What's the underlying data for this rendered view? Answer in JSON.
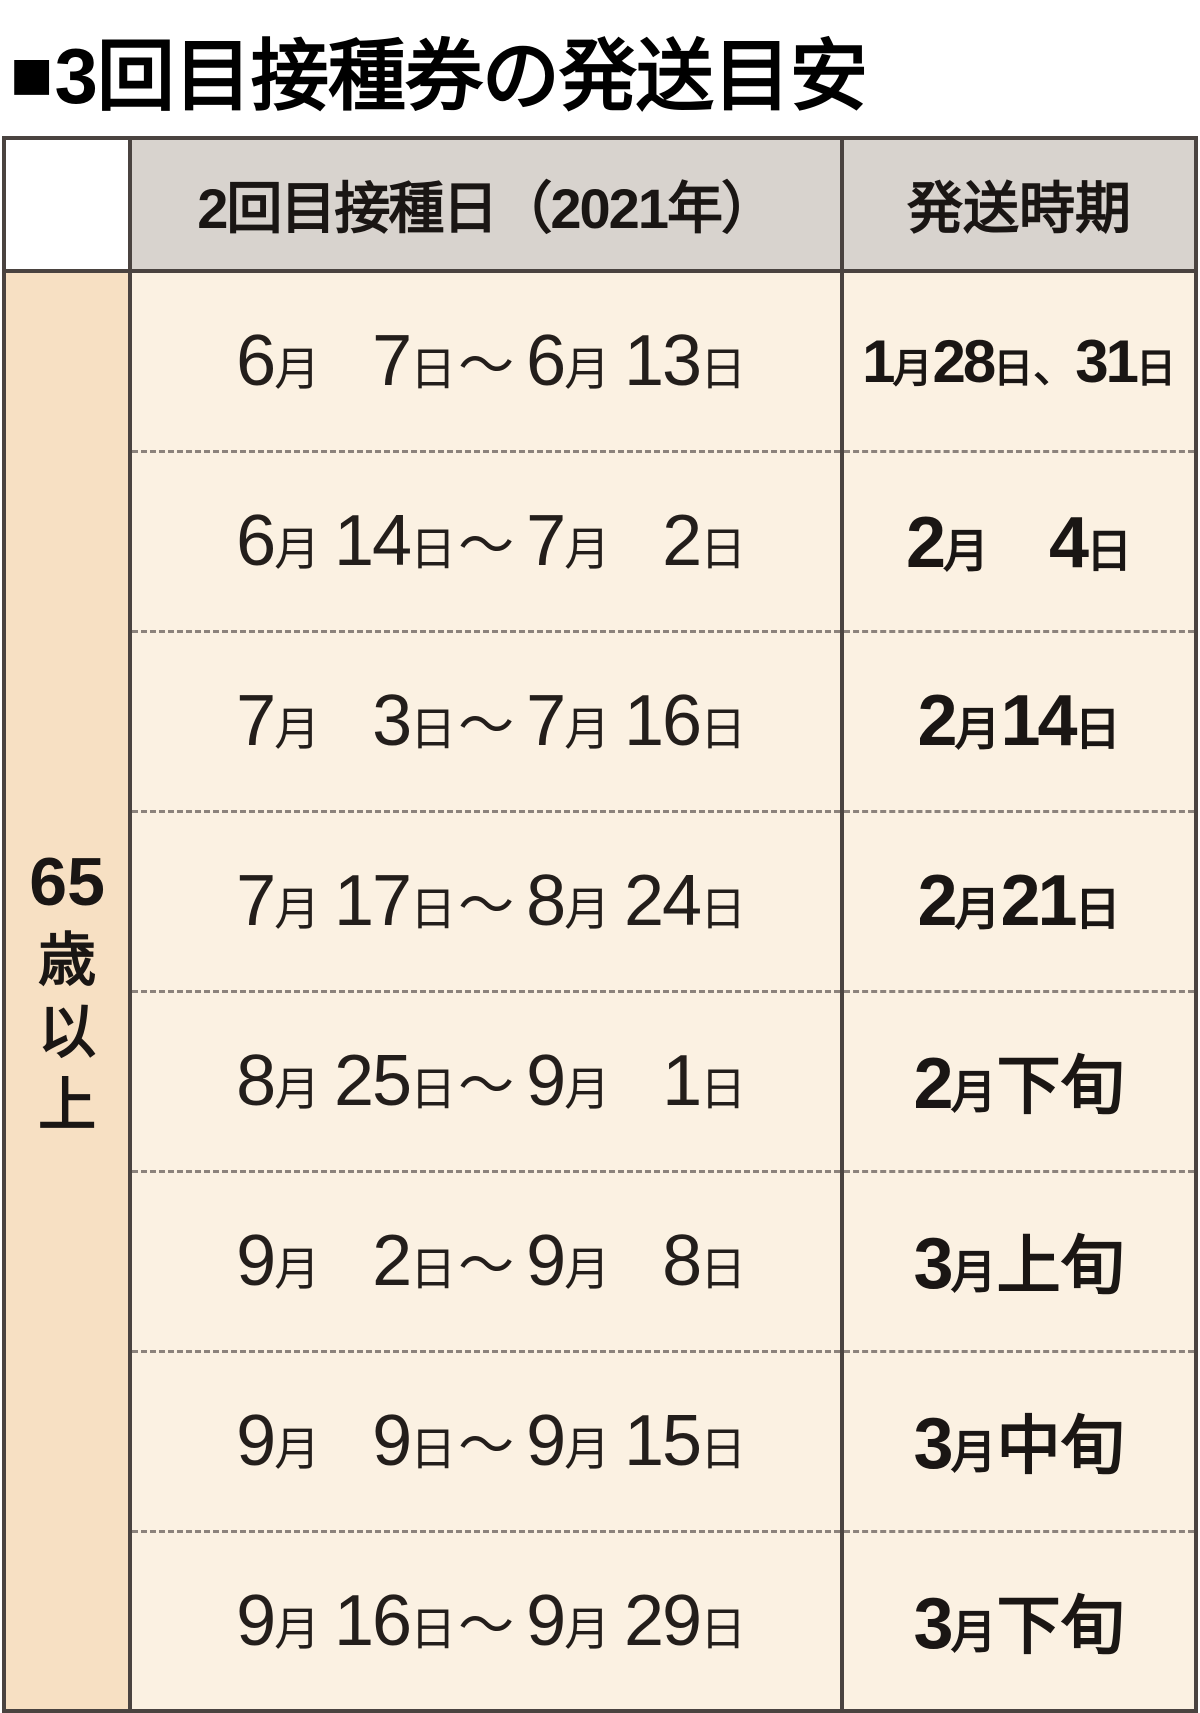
{
  "title_marker": "■",
  "title": "3回目接種券の発送目安",
  "colors": {
    "border": "#4a4340",
    "header_bg": "#d8d3ce",
    "group_bg": "#f7e0c3",
    "row_bg": "#fbf1e2",
    "dash": "#8c837c",
    "text": "#1a1614"
  },
  "table": {
    "type": "table",
    "columns": [
      "",
      "2回目接種日（2021年）",
      "発送時期"
    ],
    "header": {
      "col_date": "2回目接種日（2021年）",
      "col_ship": "発送時期"
    },
    "group_label_num": "65",
    "group_label_rest": "歳以上",
    "rows": [
      {
        "date": {
          "m1": "6",
          "d1": "7",
          "m2": "6",
          "d2": "13"
        },
        "ship": {
          "html": "<span class='n'>1</span><span class='u'>月</span><span class='n'>28</span><span class='u'>日</span><span class='sm'>、</span><span class='n'>31</span><span class='u'>日</span>",
          "cls": "ship-small-row"
        }
      },
      {
        "date": {
          "m1": "6",
          "d1": "14",
          "m2": "7",
          "d2": "2"
        },
        "ship": {
          "html": "<span class='n'>2</span><span class='u'>月</span>　<span class='n'>4</span><span class='u'>日</span>"
        }
      },
      {
        "date": {
          "m1": "7",
          "d1": "3",
          "m2": "7",
          "d2": "16"
        },
        "ship": {
          "html": "<span class='n'>2</span><span class='u'>月</span><span class='n'>14</span><span class='u'>日</span>"
        }
      },
      {
        "date": {
          "m1": "7",
          "d1": "17",
          "m2": "8",
          "d2": "24"
        },
        "ship": {
          "html": "<span class='n'>2</span><span class='u'>月</span><span class='n'>21</span><span class='u'>日</span>"
        }
      },
      {
        "date": {
          "m1": "8",
          "d1": "25",
          "m2": "9",
          "d2": "1"
        },
        "ship": {
          "html": "<span class='n'>2</span><span class='u'>月</span><span class='jp'>下旬</span>"
        }
      },
      {
        "date": {
          "m1": "9",
          "d1": "2",
          "m2": "9",
          "d2": "8"
        },
        "ship": {
          "html": "<span class='n'>3</span><span class='u'>月</span><span class='jp'>上旬</span>"
        }
      },
      {
        "date": {
          "m1": "9",
          "d1": "9",
          "m2": "9",
          "d2": "15"
        },
        "ship": {
          "html": "<span class='n'>3</span><span class='u'>月</span><span class='jp'>中旬</span>"
        }
      },
      {
        "date": {
          "m1": "9",
          "d1": "16",
          "m2": "9",
          "d2": "29"
        },
        "ship": {
          "html": "<span class='n'>3</span><span class='u'>月</span><span class='jp'>下旬</span>"
        }
      }
    ]
  }
}
